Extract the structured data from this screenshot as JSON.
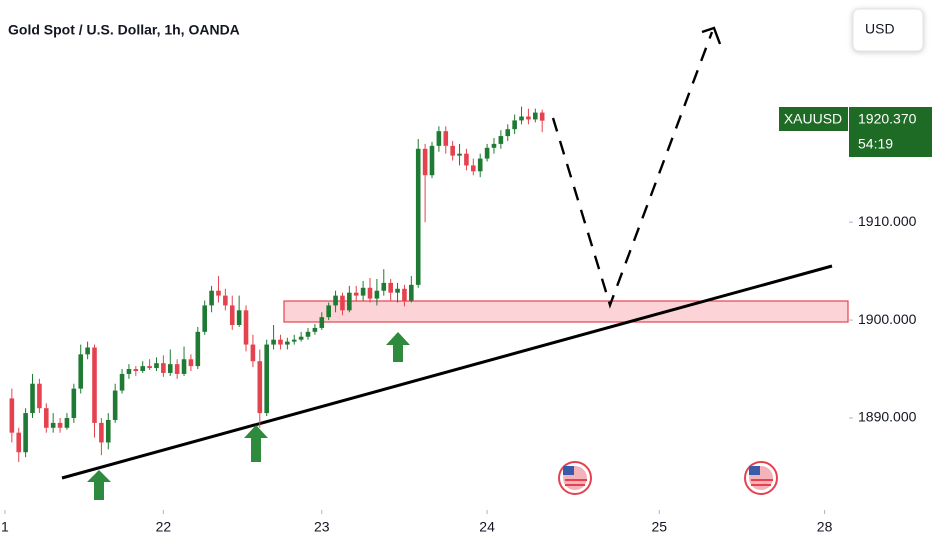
{
  "chart_data": {
    "type": "candlestick",
    "title": "Gold Spot / U.S. Dollar, 1h, OANDA",
    "symbol": "XAUUSD",
    "price_label": "1920.370",
    "countdown": "54:19",
    "currency_button": "USD",
    "up_color": "#1f7a33",
    "down_color": "#e5424f",
    "grid": false,
    "ylim": [
      1880.6,
      1932.7
    ],
    "yticks": [
      {
        "value": 1890,
        "label": "1890.000"
      },
      {
        "value": 1900,
        "label": "1900.000"
      },
      {
        "value": 1910,
        "label": "1910.000"
      }
    ],
    "xlim": [
      -0.72,
      122.4
    ],
    "xticks": [
      {
        "value": 0,
        "label": "1"
      },
      {
        "value": 23,
        "label": "22"
      },
      {
        "value": 46,
        "label": "23"
      },
      {
        "value": 70,
        "label": "24"
      },
      {
        "value": 95,
        "label": "25"
      },
      {
        "value": 119,
        "label": "28"
      }
    ],
    "candles": {
      "x": [
        1,
        2,
        3,
        4,
        5,
        6,
        7,
        8,
        9,
        10,
        11,
        12,
        13,
        14,
        15,
        16,
        17,
        18,
        19,
        20,
        21,
        22,
        23,
        24,
        25,
        26,
        27,
        28,
        29,
        30,
        31,
        32,
        33,
        34,
        35,
        36,
        37,
        38,
        39,
        40,
        41,
        42,
        43,
        44,
        45,
        46,
        47,
        48,
        49,
        50,
        51,
        52,
        53,
        54,
        55,
        56,
        57,
        58,
        59,
        60,
        61,
        62,
        63,
        64,
        65,
        66,
        67,
        68,
        69,
        70,
        71,
        72,
        73,
        74,
        75,
        76,
        77,
        78
      ],
      "open": [
        1892,
        1888.5,
        1886.5,
        1890.5,
        1893.5,
        1891,
        1889,
        1889.5,
        1889,
        1890,
        1893,
        1896.5,
        1897.2,
        1889.5,
        1887.5,
        1889.8,
        1892.8,
        1894.5,
        1895,
        1894.8,
        1895.3,
        1895.1,
        1895.6,
        1894.6,
        1895.5,
        1894.5,
        1896,
        1895.3,
        1898.8,
        1901.5,
        1903,
        1902.5,
        1901.5,
        1899.5,
        1901,
        1897.5,
        1895.8,
        1890.5,
        1897.5,
        1898,
        1897.5,
        1897.8,
        1898,
        1898.3,
        1898.8,
        1899.2,
        1900.3,
        1901.5,
        1902.5,
        1901,
        1902.8,
        1902.5,
        1903.3,
        1902.2,
        1903,
        1903.8,
        1902.8,
        1903.2,
        1902,
        1903.6,
        1917.5,
        1914.8,
        1917.8,
        1919.3,
        1917.8,
        1916.8,
        1917,
        1915.8,
        1915.2,
        1916.5,
        1917.6,
        1918,
        1918.8,
        1919.5,
        1920.4,
        1920.8,
        1920.5,
        1921.2
      ],
      "high": [
        1893,
        1889,
        1891,
        1894.5,
        1894,
        1891.5,
        1890.5,
        1890,
        1890.5,
        1893.5,
        1897.5,
        1897.8,
        1897.5,
        1890,
        1890.5,
        1893.5,
        1895,
        1895.5,
        1895.3,
        1895.8,
        1896,
        1896.2,
        1896.4,
        1897,
        1896,
        1897.3,
        1896.5,
        1899.3,
        1902,
        1903.5,
        1904.5,
        1903.2,
        1902.5,
        1902.5,
        1901.5,
        1898.5,
        1897,
        1898,
        1899.5,
        1898.5,
        1898.2,
        1898.5,
        1898.8,
        1899.2,
        1899.6,
        1900.8,
        1901.8,
        1903,
        1902.8,
        1903.5,
        1903.5,
        1904,
        1904.3,
        1904.2,
        1905.2,
        1904.2,
        1903.8,
        1903.6,
        1904.5,
        1918.5,
        1918,
        1918.2,
        1919.8,
        1919.8,
        1918.3,
        1918,
        1917.5,
        1916.5,
        1917,
        1918,
        1918.6,
        1919.4,
        1920,
        1921,
        1921.8,
        1921.6,
        1921.6,
        1921.5
      ],
      "low": [
        1887.5,
        1885.5,
        1886,
        1890,
        1890.5,
        1888.5,
        1888.5,
        1888.5,
        1888.8,
        1889.5,
        1892.5,
        1896,
        1888,
        1886.2,
        1886.8,
        1889.5,
        1892.5,
        1894,
        1894.3,
        1894.6,
        1894.9,
        1894.8,
        1894.2,
        1894.3,
        1894,
        1894.3,
        1894.8,
        1895,
        1898.5,
        1900.8,
        1901.8,
        1901,
        1899,
        1899.3,
        1896.8,
        1895.2,
        1889,
        1890.2,
        1897,
        1897,
        1897,
        1897.5,
        1897.8,
        1898,
        1898.5,
        1899,
        1900,
        1900.8,
        1900.5,
        1900.8,
        1902,
        1902,
        1901.8,
        1901.5,
        1902.5,
        1902,
        1901.8,
        1901.4,
        1901.8,
        1903.3,
        1910,
        1914.5,
        1917.2,
        1917,
        1916.3,
        1915.8,
        1915.3,
        1914.8,
        1914.6,
        1916.2,
        1917,
        1917.5,
        1918.3,
        1919,
        1920,
        1920,
        1920.2,
        1919.2
      ],
      "close": [
        1888.5,
        1886.5,
        1890.5,
        1893.5,
        1891,
        1889,
        1889.5,
        1889,
        1890,
        1893,
        1896.5,
        1897.2,
        1889.5,
        1887.5,
        1889.8,
        1892.8,
        1894.5,
        1895,
        1894.8,
        1895.3,
        1895.1,
        1895.6,
        1894.6,
        1895.5,
        1894.5,
        1896,
        1895.3,
        1898.8,
        1901.5,
        1903,
        1902.5,
        1901.5,
        1899.5,
        1901,
        1897.5,
        1895.8,
        1890.5,
        1897.5,
        1898,
        1897.5,
        1897.8,
        1898,
        1898.3,
        1898.8,
        1899.2,
        1900.3,
        1901.5,
        1902.5,
        1901,
        1902.8,
        1902.5,
        1903.3,
        1902.2,
        1903,
        1903.8,
        1902.8,
        1903.2,
        1902,
        1903.6,
        1917.5,
        1914.8,
        1917.8,
        1919.3,
        1917.8,
        1916.8,
        1917,
        1915.8,
        1915.2,
        1916.5,
        1917.6,
        1918,
        1918.8,
        1919.5,
        1920.4,
        1920.8,
        1920.5,
        1921.2,
        1920.37
      ]
    }
  }
}
